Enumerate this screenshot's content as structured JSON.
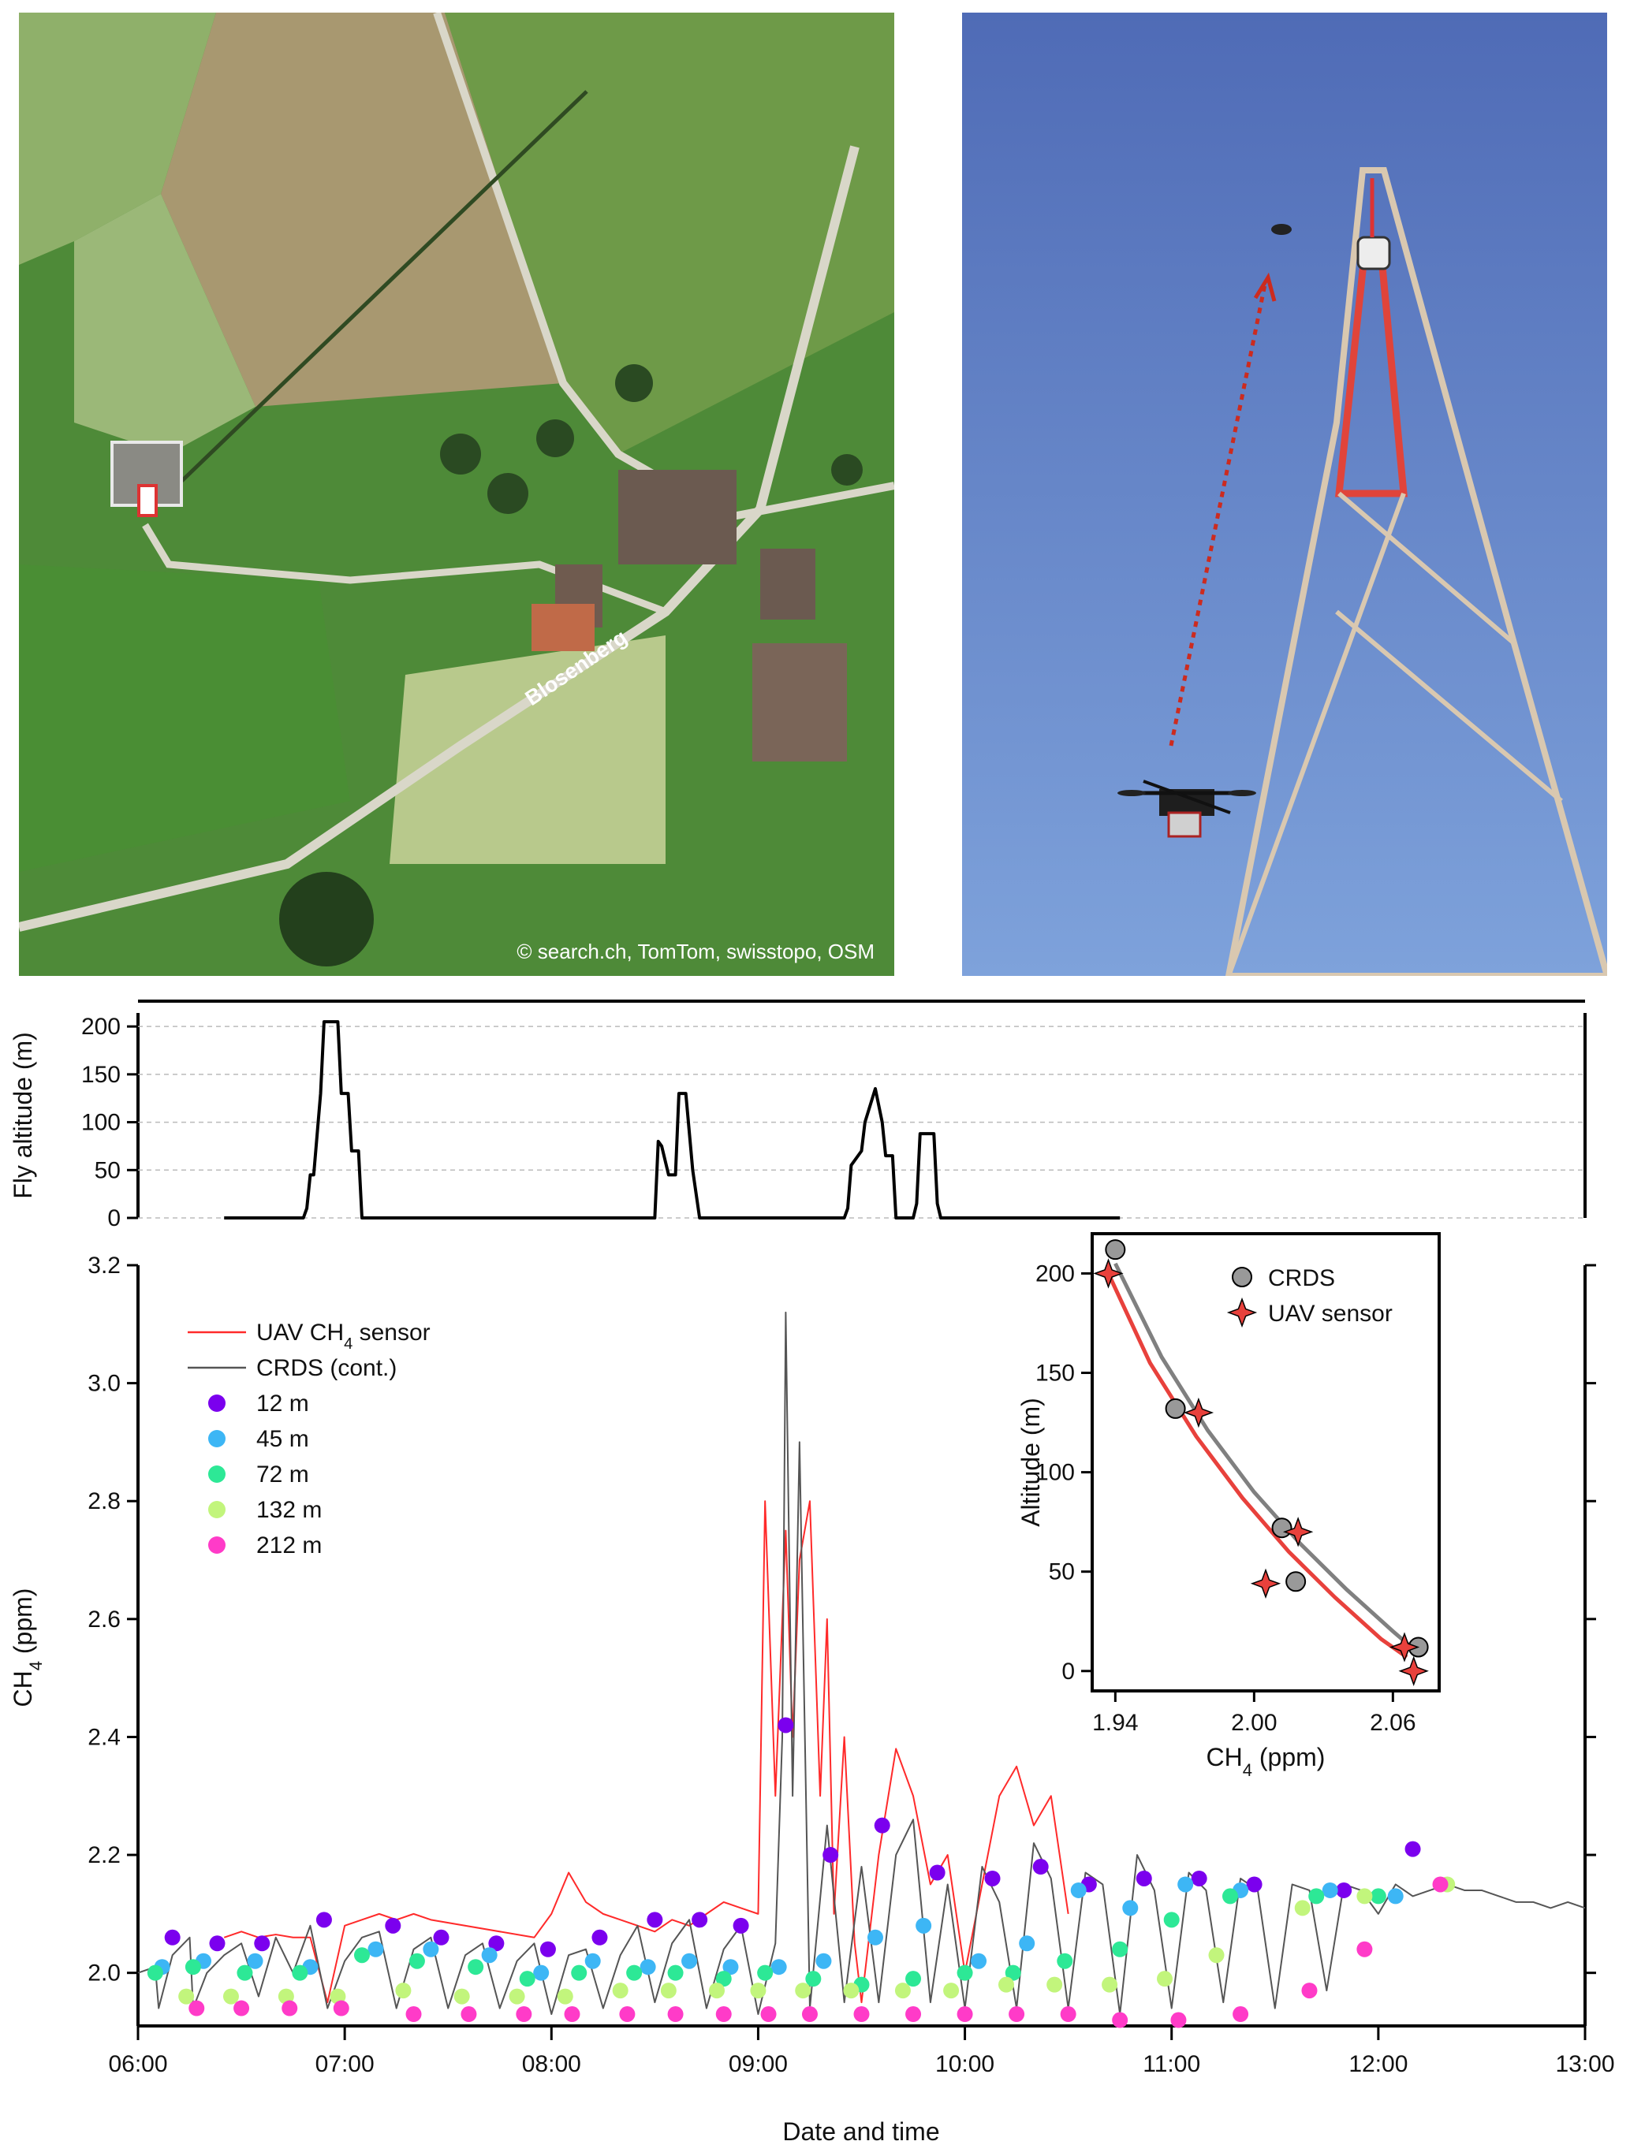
{
  "map_panel": {
    "credit": "© search.ch, TomTom, swisstopo, OSM",
    "road_label": "Blosenberg"
  },
  "colors": {
    "uav_line": "#ff2a2a",
    "crds_line": "#555555",
    "alt_12": "#7b00ee",
    "alt_45": "#3db6f5",
    "alt_72": "#2de896",
    "alt_132": "#c2f57c",
    "alt_212": "#ff3bc8",
    "inset_crds": "#999999",
    "inset_uav": "#e8413c"
  },
  "chart_data": [
    {
      "id": "fly_altitude",
      "type": "line",
      "ylabel": "Fly altitude (m)",
      "ylim": [
        0,
        210
      ],
      "yticks": [
        0,
        50,
        100,
        150,
        200
      ],
      "xlim": [
        "06:00",
        "13:00"
      ],
      "grid": true,
      "series": [
        {
          "x": [
            "06:25",
            "06:48",
            "06:49",
            "06:50",
            "06:51",
            "06:53",
            "06:54",
            "06:58",
            "06:59",
            "07:01",
            "07:02",
            "07:04",
            "07:05",
            "08:30",
            "08:31",
            "08:32",
            "08:34",
            "08:36",
            "08:37",
            "08:39",
            "08:40",
            "08:41",
            "08:43",
            "08:44",
            "08:46",
            "09:25",
            "09:26",
            "09:27",
            "09:30",
            "09:31",
            "09:34",
            "09:36",
            "09:37",
            "09:39",
            "09:40",
            "09:45",
            "09:46",
            "09:47",
            "09:51",
            "09:52",
            "09:53",
            "10:45"
          ],
          "y": [
            0,
            0,
            10,
            45,
            45,
            130,
            205,
            205,
            130,
            130,
            70,
            70,
            0,
            0,
            80,
            75,
            45,
            45,
            130,
            130,
            90,
            50,
            0,
            0,
            0,
            0,
            10,
            55,
            70,
            100,
            135,
            100,
            65,
            65,
            0,
            0,
            15,
            88,
            88,
            15,
            0,
            0
          ]
        }
      ]
    },
    {
      "id": "ch4_timeseries",
      "type": "line",
      "xlabel": "Date and time",
      "ylabel": "CH4 (ppm)",
      "ylim": [
        1.91,
        3.2
      ],
      "yticks": [
        2.0,
        2.2,
        2.4,
        2.6,
        2.8,
        3.0,
        3.2
      ],
      "xticks": [
        "06:00",
        "07:00",
        "08:00",
        "09:00",
        "10:00",
        "11:00",
        "12:00",
        "13:00"
      ],
      "legend": [
        {
          "label": "UAV CH4 sensor",
          "kind": "line",
          "color_key": "uav_line"
        },
        {
          "label": "CRDS (cont.)",
          "kind": "line",
          "color_key": "crds_line"
        },
        {
          "label": "  12 m",
          "kind": "dot",
          "color_key": "alt_12"
        },
        {
          "label": "  45 m",
          "kind": "dot",
          "color_key": "alt_45"
        },
        {
          "label": "  72 m",
          "kind": "dot",
          "color_key": "alt_72"
        },
        {
          "label": "132 m",
          "kind": "dot",
          "color_key": "alt_132"
        },
        {
          "label": "212 m",
          "kind": "dot",
          "color_key": "alt_212"
        }
      ],
      "series": [
        {
          "name": "UAV CH4 sensor",
          "x": [
            "06:25",
            "06:30",
            "06:35",
            "06:40",
            "06:45",
            "06:50",
            "06:55",
            "07:00",
            "07:05",
            "07:10",
            "07:15",
            "07:20",
            "07:25",
            "07:55",
            "08:00",
            "08:05",
            "08:10",
            "08:15",
            "08:20",
            "08:25",
            "08:30",
            "08:35",
            "08:40",
            "08:45",
            "08:50",
            "08:55",
            "09:00",
            "09:02",
            "09:05",
            "09:08",
            "09:10",
            "09:12",
            "09:15",
            "09:18",
            "09:20",
            "09:22",
            "09:25",
            "09:28",
            "09:30",
            "09:35",
            "09:40",
            "09:45",
            "09:50",
            "09:55",
            "10:00",
            "10:05",
            "10:10",
            "10:15",
            "10:20",
            "10:25",
            "10:30"
          ],
          "y": [
            2.06,
            2.07,
            2.06,
            2.065,
            2.06,
            2.06,
            1.95,
            2.08,
            2.09,
            2.1,
            2.09,
            2.1,
            2.09,
            2.06,
            2.1,
            2.17,
            2.12,
            2.1,
            2.09,
            2.08,
            2.07,
            2.09,
            2.08,
            2.1,
            2.12,
            2.11,
            2.1,
            2.8,
            2.3,
            2.75,
            2.4,
            2.7,
            2.8,
            2.3,
            2.6,
            2.1,
            2.4,
            2.05,
            1.95,
            2.2,
            2.38,
            2.3,
            2.15,
            2.2,
            2.0,
            2.15,
            2.3,
            2.35,
            2.25,
            2.3,
            2.1
          ]
        },
        {
          "name": "CRDS (cont.)",
          "x": [
            "06:00",
            "06:05",
            "06:06",
            "06:10",
            "06:15",
            "06:16",
            "06:20",
            "06:25",
            "06:30",
            "06:35",
            "06:40",
            "06:45",
            "06:50",
            "06:55",
            "07:00",
            "07:05",
            "07:10",
            "07:15",
            "07:20",
            "07:25",
            "07:30",
            "07:35",
            "07:40",
            "07:45",
            "07:50",
            "07:55",
            "08:00",
            "08:05",
            "08:10",
            "08:15",
            "08:20",
            "08:25",
            "08:30",
            "08:35",
            "08:40",
            "08:45",
            "08:50",
            "08:55",
            "09:00",
            "09:05",
            "09:07",
            "09:08",
            "09:10",
            "09:12",
            "09:15",
            "09:20",
            "09:25",
            "09:30",
            "09:35",
            "09:40",
            "09:45",
            "09:50",
            "09:55",
            "10:00",
            "10:05",
            "10:10",
            "10:15",
            "10:20",
            "10:25",
            "10:30",
            "10:35",
            "10:40",
            "10:45",
            "10:50",
            "10:55",
            "11:00",
            "11:05",
            "11:10",
            "11:15",
            "11:20",
            "11:25",
            "11:30",
            "11:35",
            "11:40",
            "11:45",
            "11:50",
            "11:55",
            "12:00",
            "12:05",
            "12:10",
            "12:15",
            "12:20",
            "12:25",
            "12:30",
            "12:35",
            "12:40",
            "12:45",
            "12:50",
            "12:55",
            "13:00"
          ],
          "y": [
            2.0,
            2.01,
            1.94,
            2.03,
            2.06,
            1.94,
            2.0,
            2.03,
            2.05,
            1.96,
            2.06,
            2.0,
            2.08,
            1.94,
            2.02,
            2.06,
            2.07,
            1.94,
            2.04,
            2.06,
            1.94,
            2.03,
            2.05,
            1.94,
            2.02,
            2.05,
            1.93,
            2.03,
            2.04,
            1.94,
            2.03,
            2.08,
            1.95,
            2.05,
            2.09,
            1.94,
            2.04,
            2.08,
            1.93,
            2.05,
            2.4,
            3.12,
            2.3,
            2.9,
            1.94,
            2.25,
            1.95,
            2.18,
            1.95,
            2.2,
            2.26,
            1.95,
            2.15,
            1.94,
            2.18,
            2.12,
            1.94,
            2.22,
            2.16,
            1.94,
            2.17,
            2.15,
            1.93,
            2.2,
            2.14,
            1.94,
            2.17,
            2.14,
            1.95,
            2.16,
            2.14,
            1.94,
            2.15,
            2.14,
            1.97,
            2.15,
            2.14,
            2.1,
            2.15,
            2.13,
            2.14,
            2.15,
            2.14,
            2.14,
            2.13,
            2.12,
            2.12,
            2.11,
            2.12,
            2.11
          ]
        }
      ],
      "points": {
        "12 m": {
          "color_key": "alt_12",
          "x": [
            "06:10",
            "06:23",
            "06:36",
            "06:54",
            "07:14",
            "07:28",
            "07:44",
            "07:59",
            "08:14",
            "08:30",
            "08:43",
            "08:55",
            "09:08",
            "09:21",
            "09:36",
            "09:52",
            "10:08",
            "10:22",
            "10:36",
            "10:52",
            "11:08",
            "11:24",
            "11:50",
            "12:10"
          ],
          "y": [
            2.06,
            2.05,
            2.05,
            2.09,
            2.08,
            2.06,
            2.05,
            2.04,
            2.06,
            2.09,
            2.09,
            2.08,
            2.42,
            2.2,
            2.25,
            2.17,
            2.16,
            2.18,
            2.15,
            2.16,
            2.16,
            2.15,
            2.14,
            2.21
          ]
        },
        "45 m": {
          "color_key": "alt_45",
          "x": [
            "06:07",
            "06:19",
            "06:34",
            "06:50",
            "07:09",
            "07:25",
            "07:42",
            "07:57",
            "08:12",
            "08:28",
            "08:40",
            "08:52",
            "09:06",
            "09:19",
            "09:34",
            "09:48",
            "10:04",
            "10:18",
            "10:33",
            "10:48",
            "11:04",
            "11:20",
            "11:46",
            "12:05"
          ],
          "y": [
            2.01,
            2.02,
            2.02,
            2.01,
            2.04,
            2.04,
            2.03,
            2.0,
            2.02,
            2.01,
            2.02,
            2.01,
            2.01,
            2.02,
            2.06,
            2.08,
            2.02,
            2.05,
            2.14,
            2.11,
            2.15,
            2.14,
            2.14,
            2.13
          ]
        },
        "72 m": {
          "color_key": "alt_72",
          "x": [
            "06:05",
            "06:16",
            "06:31",
            "06:47",
            "07:05",
            "07:21",
            "07:38",
            "07:53",
            "08:08",
            "08:24",
            "08:36",
            "08:50",
            "09:02",
            "09:16",
            "09:30",
            "09:45",
            "10:00",
            "10:14",
            "10:29",
            "10:45",
            "11:00",
            "11:17",
            "11:42",
            "12:00"
          ],
          "y": [
            2.0,
            2.01,
            2.0,
            2.0,
            2.03,
            2.02,
            2.01,
            1.99,
            2.0,
            2.0,
            2.0,
            1.99,
            2.0,
            1.99,
            1.98,
            1.99,
            2.0,
            2.0,
            2.02,
            2.04,
            2.09,
            2.13,
            2.13,
            2.13
          ]
        },
        "132 m": {
          "color_key": "alt_132",
          "x": [
            "06:14",
            "06:27",
            "06:43",
            "06:58",
            "07:17",
            "07:34",
            "07:50",
            "08:04",
            "08:20",
            "08:34",
            "08:48",
            "09:00",
            "09:13",
            "09:27",
            "09:42",
            "09:56",
            "10:12",
            "10:26",
            "10:42",
            "10:58",
            "11:13",
            "11:38",
            "11:56",
            "12:20"
          ],
          "y": [
            1.96,
            1.96,
            1.96,
            1.96,
            1.97,
            1.96,
            1.96,
            1.96,
            1.97,
            1.97,
            1.97,
            1.97,
            1.97,
            1.97,
            1.97,
            1.97,
            1.98,
            1.98,
            1.98,
            1.99,
            2.03,
            2.11,
            2.13,
            2.15
          ]
        },
        "212 m": {
          "color_key": "alt_212",
          "x": [
            "06:17",
            "06:30",
            "06:44",
            "06:59",
            "07:20",
            "07:36",
            "07:52",
            "08:06",
            "08:22",
            "08:36",
            "08:50",
            "09:03",
            "09:15",
            "09:30",
            "09:45",
            "10:00",
            "10:15",
            "10:30",
            "10:45",
            "11:02",
            "11:20",
            "11:40",
            "11:56",
            "12:18"
          ],
          "y": [
            1.94,
            1.94,
            1.94,
            1.94,
            1.93,
            1.93,
            1.93,
            1.93,
            1.93,
            1.93,
            1.93,
            1.93,
            1.93,
            1.93,
            1.93,
            1.93,
            1.93,
            1.93,
            1.92,
            1.92,
            1.93,
            1.97,
            2.04,
            2.15
          ]
        }
      }
    },
    {
      "id": "inset_profile",
      "type": "scatter",
      "xlabel": "CH4 (ppm)",
      "ylabel": "Altitude (m)",
      "xlim": [
        1.93,
        2.08
      ],
      "ylim": [
        -10,
        220
      ],
      "xticks": [
        1.94,
        2.0,
        2.06
      ],
      "yticks": [
        0,
        50,
        100,
        150,
        200
      ],
      "series": [
        {
          "name": "CRDS",
          "marker": "circle",
          "color_key": "inset_crds",
          "x": [
            1.94,
            1.966,
            2.012,
            2.018,
            2.071
          ],
          "y": [
            212,
            132,
            72,
            45,
            12
          ]
        },
        {
          "name": "UAV sensor",
          "marker": "star",
          "color_key": "inset_uav",
          "x": [
            1.937,
            1.976,
            2.005,
            2.019,
            2.065,
            2.069
          ],
          "y": [
            200,
            130,
            44,
            70,
            12,
            0
          ]
        }
      ],
      "fits": [
        {
          "color_key": "inset_crds",
          "x": [
            1.94,
            1.96,
            1.98,
            2.0,
            2.02,
            2.04,
            2.06,
            2.07
          ],
          "y": [
            205,
            158,
            121,
            90,
            64,
            41,
            20,
            10
          ]
        },
        {
          "color_key": "inset_uav",
          "x": [
            1.937,
            1.955,
            1.975,
            1.995,
            2.015,
            2.035,
            2.055,
            2.066
          ],
          "y": [
            200,
            155,
            118,
            87,
            60,
            37,
            16,
            7
          ]
        }
      ]
    }
  ]
}
